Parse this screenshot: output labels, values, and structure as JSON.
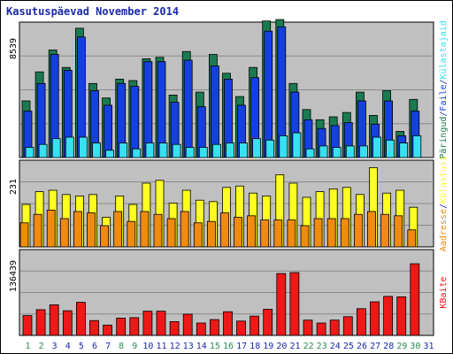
{
  "title": "Kasutuspäevad November 2014",
  "colors": {
    "panel_bg": "#c0c0c0",
    "grid": "#8a8a8a",
    "pages": "#1a7a50",
    "files": "#1540e0",
    "hits": "#38e0f0",
    "visits": "#ffff20",
    "sites": "#f08a10",
    "kbytes": "#ee1818",
    "weekend": "#2a8a50",
    "weekday": "#1a2aa8"
  },
  "chart_data": [
    {
      "type": "bar",
      "title": "Kasutuspäevad November 2014",
      "categories": [
        "1",
        "2",
        "3",
        "4",
        "5",
        "6",
        "7",
        "8",
        "9",
        "10",
        "11",
        "12",
        "13",
        "14",
        "15",
        "16",
        "17",
        "18",
        "19",
        "20",
        "21",
        "22",
        "23",
        "24",
        "25",
        "26",
        "27",
        "28",
        "29",
        "30",
        "31"
      ],
      "weekend_days": [
        "1",
        "2",
        "8",
        "9",
        "15",
        "16",
        "22",
        "23",
        "29",
        "30"
      ],
      "ytick_label": "8539",
      "ylim": [
        0,
        9200
      ],
      "series": [
        {
          "name": "Päringud",
          "values": [
            3900,
            5900,
            7400,
            6200,
            8900,
            5100,
            4100,
            5400,
            5300,
            6800,
            6900,
            4300,
            7300,
            4500,
            7100,
            5800,
            4200,
            6200,
            9400,
            9500,
            5100,
            3300,
            2600,
            2800,
            3100,
            4500,
            2900,
            4600,
            1800,
            4000,
            0
          ]
        },
        {
          "name": "Faile",
          "values": [
            3200,
            5100,
            7100,
            6000,
            8300,
            4600,
            3600,
            5100,
            4900,
            6600,
            6600,
            3800,
            6700,
            3500,
            6300,
            5400,
            3600,
            5500,
            8700,
            9000,
            4500,
            2600,
            2000,
            2200,
            2400,
            3900,
            2300,
            3900,
            1500,
            3200,
            0
          ]
        },
        {
          "name": "Külastajaid",
          "values": [
            700,
            900,
            1300,
            1400,
            1400,
            1000,
            500,
            1000,
            600,
            1000,
            1000,
            900,
            700,
            700,
            900,
            1000,
            1000,
            1300,
            1200,
            1500,
            1700,
            600,
            800,
            700,
            800,
            800,
            1400,
            1200,
            1000,
            1500,
            0
          ]
        }
      ]
    },
    {
      "type": "bar",
      "categories": [
        "1",
        "2",
        "3",
        "4",
        "5",
        "6",
        "7",
        "8",
        "9",
        "10",
        "11",
        "12",
        "13",
        "14",
        "15",
        "16",
        "17",
        "18",
        "19",
        "20",
        "21",
        "22",
        "23",
        "24",
        "25",
        "26",
        "27",
        "28",
        "29",
        "30",
        "31"
      ],
      "ytick_label": "231",
      "ylim": [
        0,
        300
      ],
      "series": [
        {
          "name": "Külastusi",
          "values": [
            150,
            195,
            200,
            185,
            180,
            185,
            105,
            180,
            150,
            225,
            235,
            155,
            200,
            165,
            160,
            210,
            215,
            190,
            180,
            255,
            225,
            175,
            195,
            205,
            210,
            185,
            280,
            190,
            200,
            140,
            0
          ]
        },
        {
          "name": "Aadresse",
          "values": [
            85,
            115,
            130,
            100,
            125,
            120,
            75,
            125,
            90,
            125,
            115,
            100,
            125,
            85,
            90,
            120,
            105,
            110,
            95,
            95,
            95,
            75,
            100,
            100,
            100,
            115,
            125,
            115,
            110,
            60,
            0
          ]
        }
      ]
    },
    {
      "type": "bar",
      "categories": [
        "1",
        "2",
        "3",
        "4",
        "5",
        "6",
        "7",
        "8",
        "9",
        "10",
        "11",
        "12",
        "13",
        "14",
        "15",
        "16",
        "17",
        "18",
        "19",
        "20",
        "21",
        "22",
        "23",
        "24",
        "25",
        "26",
        "27",
        "28",
        "29",
        "30",
        "31"
      ],
      "ytick_label": "136439",
      "ylim": [
        0,
        170000
      ],
      "series": [
        {
          "name": "KBaite",
          "values": [
            40000,
            52000,
            62000,
            50000,
            67000,
            30000,
            21000,
            35000,
            36000,
            49000,
            49000,
            28000,
            43000,
            25000,
            32000,
            48000,
            29000,
            39000,
            53000,
            125000,
            127000,
            31000,
            25000,
            31000,
            38000,
            54000,
            68000,
            79000,
            78000,
            145000,
            0
          ]
        }
      ]
    }
  ],
  "legend_top": [
    {
      "key": "pages",
      "label": "Päringud"
    },
    {
      "key": "files",
      "label": "Faile"
    },
    {
      "key": "hits",
      "label": "Külastajaid"
    }
  ],
  "legend_mid": [
    {
      "key": "sites",
      "label": "Aadresse"
    },
    {
      "key": "visits",
      "label": "Külastusi"
    }
  ],
  "legend_bot": [
    {
      "key": "kbytes",
      "label": "KBaite"
    }
  ],
  "separator": "/"
}
